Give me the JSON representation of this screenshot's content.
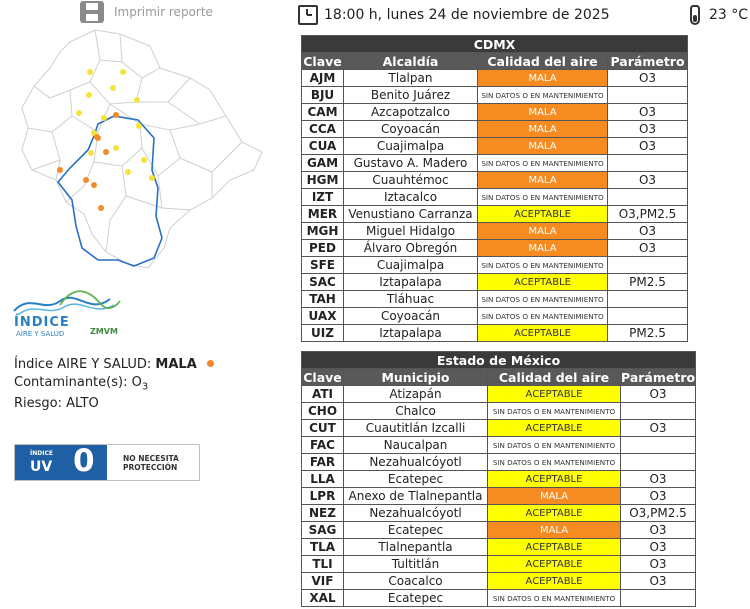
{
  "print": {
    "label": "Imprimir reporte",
    "icon": "printer-icon"
  },
  "header": {
    "datetime": "18:00 h, lunes 24 de noviembre de 2025",
    "temperature": "23 °C"
  },
  "logo": {
    "title": "ÍNDICE",
    "subtitle": "AIRE Y SALUD",
    "org": "ZMVM"
  },
  "info": {
    "index_label": "Índice AIRE Y SALUD:",
    "index_value": "MALA",
    "pollutant_label": "Contaminante(s):",
    "pollutant_value": "O",
    "pollutant_sub": "3",
    "risk_label": "Riesgo:",
    "risk_value": "ALTO",
    "status_color": "#f2852b"
  },
  "uv": {
    "small": "ÍNDICE",
    "label": "UV",
    "value": "0",
    "desc_line1": "NO NECESITA",
    "desc_line2": "PROTECCIÓN"
  },
  "colors": {
    "mala": "#f58b21",
    "aceptable": "#ffff00",
    "header": "#595959",
    "title": "#3a3a3a"
  },
  "cdmx": {
    "title": "CDMX",
    "headers": [
      "Clave",
      "Alcaldía",
      "Calidad del aire",
      "Parámetro"
    ],
    "rows": [
      {
        "code": "AJM",
        "name": "Tlalpan",
        "quality": "MALA",
        "param": "O3"
      },
      {
        "code": "BJU",
        "name": "Benito Juárez",
        "quality": "SIN DATOS O EN MANTENIMIENTO",
        "param": ""
      },
      {
        "code": "CAM",
        "name": "Azcapotzalco",
        "quality": "MALA",
        "param": "O3"
      },
      {
        "code": "CCA",
        "name": "Coyoacán",
        "quality": "MALA",
        "param": "O3"
      },
      {
        "code": "CUA",
        "name": "Cuajimalpa",
        "quality": "MALA",
        "param": "O3"
      },
      {
        "code": "GAM",
        "name": "Gustavo A. Madero",
        "quality": "SIN DATOS O EN MANTENIMIENTO",
        "param": ""
      },
      {
        "code": "HGM",
        "name": "Cuauhtémoc",
        "quality": "MALA",
        "param": "O3"
      },
      {
        "code": "IZT",
        "name": "Iztacalco",
        "quality": "SIN DATOS O EN MANTENIMIENTO",
        "param": ""
      },
      {
        "code": "MER",
        "name": "Venustiano Carranza",
        "quality": "ACEPTABLE",
        "param": "O3,PM2.5"
      },
      {
        "code": "MGH",
        "name": "Miguel Hidalgo",
        "quality": "MALA",
        "param": "O3"
      },
      {
        "code": "PED",
        "name": "Álvaro Obregón",
        "quality": "MALA",
        "param": "O3"
      },
      {
        "code": "SFE",
        "name": "Cuajimalpa",
        "quality": "SIN DATOS O EN MANTENIMIENTO",
        "param": ""
      },
      {
        "code": "SAC",
        "name": "Iztapalapa",
        "quality": "ACEPTABLE",
        "param": "PM2.5"
      },
      {
        "code": "TAH",
        "name": "Tláhuac",
        "quality": "SIN DATOS O EN MANTENIMIENTO",
        "param": ""
      },
      {
        "code": "UAX",
        "name": "Coyoacán",
        "quality": "SIN DATOS O EN MANTENIMIENTO",
        "param": ""
      },
      {
        "code": "UIZ",
        "name": "Iztapalapa",
        "quality": "ACEPTABLE",
        "param": "PM2.5"
      }
    ]
  },
  "edomex": {
    "title": "Estado de México",
    "headers": [
      "Clave",
      "Municipio",
      "Calidad del aire",
      "Parámetro"
    ],
    "rows": [
      {
        "code": "ATI",
        "name": "Atizapán",
        "quality": "ACEPTABLE",
        "param": "O3"
      },
      {
        "code": "CHO",
        "name": "Chalco",
        "quality": "SIN DATOS O EN MANTENIMIENTO",
        "param": ""
      },
      {
        "code": "CUT",
        "name": "Cuautitlán Izcalli",
        "quality": "ACEPTABLE",
        "param": "O3"
      },
      {
        "code": "FAC",
        "name": "Naucalpan",
        "quality": "SIN DATOS O EN MANTENIMIENTO",
        "param": ""
      },
      {
        "code": "FAR",
        "name": "Nezahualcóyotl",
        "quality": "SIN DATOS O EN MANTENIMIENTO",
        "param": ""
      },
      {
        "code": "LLA",
        "name": "Ecatepec",
        "quality": "ACEPTABLE",
        "param": "O3"
      },
      {
        "code": "LPR",
        "name": "Anexo de Tlalnepantla",
        "quality": "MALA",
        "param": "O3"
      },
      {
        "code": "NEZ",
        "name": "Nezahualcóyotl",
        "quality": "ACEPTABLE",
        "param": "O3,PM2.5"
      },
      {
        "code": "SAG",
        "name": "Ecatepec",
        "quality": "MALA",
        "param": "O3"
      },
      {
        "code": "TLA",
        "name": "Tlalnepantla",
        "quality": "ACEPTABLE",
        "param": "O3"
      },
      {
        "code": "TLI",
        "name": "Tultitlán",
        "quality": "ACEPTABLE",
        "param": "O3"
      },
      {
        "code": "VIF",
        "name": "Coacalco",
        "quality": "ACEPTABLE",
        "param": "O3"
      },
      {
        "code": "XAL",
        "name": "Ecatepec",
        "quality": "SIN DATOS O EN MANTENIMIENTO",
        "param": ""
      }
    ]
  }
}
